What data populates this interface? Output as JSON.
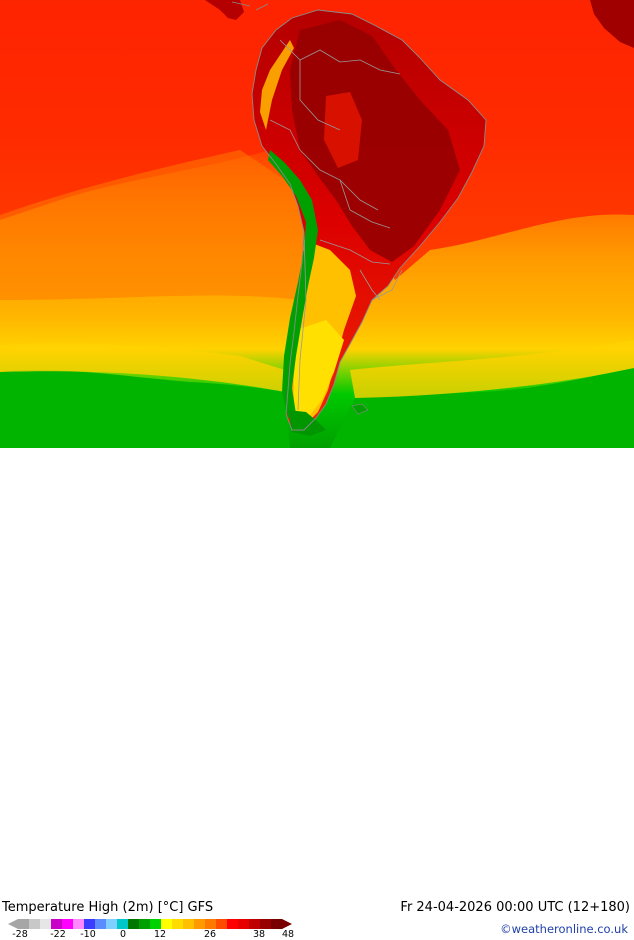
{
  "map": {
    "region": "South America",
    "model": "GFS"
  },
  "footer": {
    "title": "Temperature High (2m) [°C] GFS",
    "datetime": "Fr 24-04-2026 00:00 UTC (12+180)",
    "credit": "©weatheronline.co.uk"
  },
  "legend": {
    "ticks": [
      "-28",
      "-22",
      "-10",
      "0",
      "12",
      "26",
      "38",
      "48"
    ],
    "colors": [
      "#a6a6a6",
      "#c8c8c8",
      "#e6e6e6",
      "#c800c8",
      "#ff00ff",
      "#ff88ff",
      "#3c3cff",
      "#5a8cff",
      "#7fd0ff",
      "#00c8c8",
      "#007800",
      "#00a000",
      "#00d200",
      "#ffff00",
      "#ffdc00",
      "#ffc000",
      "#ff9b00",
      "#ff7800",
      "#ff4b00",
      "#ff0000",
      "#e60000",
      "#be0000",
      "#960000",
      "#780000"
    ]
  },
  "colors": {
    "ocean_hot": "#ff2200",
    "ocean_warm": "#ff9b00",
    "ocean_mild": "#ffd000",
    "ocean_cool": "#00c000",
    "land_hot": "#c80000",
    "land_very_hot": "#960000",
    "border": "#999999"
  }
}
